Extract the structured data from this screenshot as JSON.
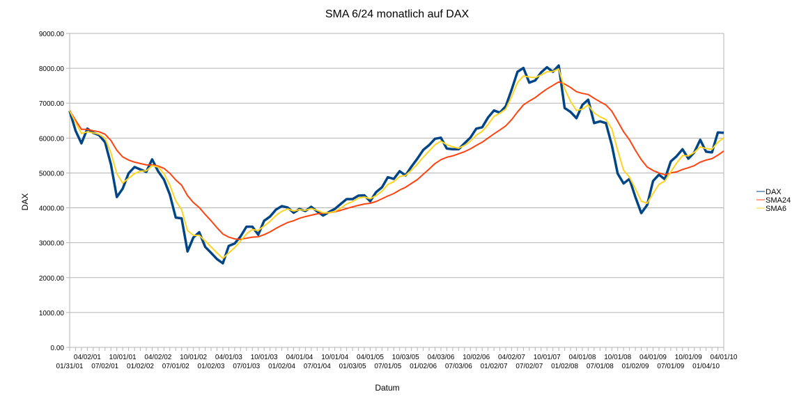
{
  "chart_data": {
    "type": "line",
    "title": "SMA 6/24 monatlich auf DAX",
    "xlabel": "Datum",
    "ylabel": "DAX",
    "ylim": [
      0,
      9000
    ],
    "y_ticks": [
      "0.00",
      "1000.00",
      "2000.00",
      "3000.00",
      "4000.00",
      "5000.00",
      "6000.00",
      "7000.00",
      "8000.00",
      "9000.00"
    ],
    "grid": true,
    "legend_position": "right",
    "x_tick_labels": [
      {
        "index": 0,
        "label": "01/31/01"
      },
      {
        "index": 3,
        "label": "04/02/01"
      },
      {
        "index": 6,
        "label": "07/02/01"
      },
      {
        "index": 9,
        "label": "10/01/01"
      },
      {
        "index": 12,
        "label": "01/02/02"
      },
      {
        "index": 15,
        "label": "04/02/02"
      },
      {
        "index": 18,
        "label": "07/01/02"
      },
      {
        "index": 21,
        "label": "10/01/02"
      },
      {
        "index": 24,
        "label": "01/02/03"
      },
      {
        "index": 27,
        "label": "04/01/03"
      },
      {
        "index": 30,
        "label": "07/01/03"
      },
      {
        "index": 33,
        "label": "10/01/03"
      },
      {
        "index": 36,
        "label": "01/02/04"
      },
      {
        "index": 39,
        "label": "04/01/04"
      },
      {
        "index": 42,
        "label": "07/01/04"
      },
      {
        "index": 45,
        "label": "10/01/04"
      },
      {
        "index": 48,
        "label": "01/03/05"
      },
      {
        "index": 51,
        "label": "04/01/05"
      },
      {
        "index": 54,
        "label": "07/01/05"
      },
      {
        "index": 57,
        "label": "10/03/05"
      },
      {
        "index": 60,
        "label": "01/02/06"
      },
      {
        "index": 63,
        "label": "04/03/06"
      },
      {
        "index": 66,
        "label": "07/03/06"
      },
      {
        "index": 69,
        "label": "10/02/06"
      },
      {
        "index": 72,
        "label": "01/02/07"
      },
      {
        "index": 75,
        "label": "04/02/07"
      },
      {
        "index": 78,
        "label": "07/02/07"
      },
      {
        "index": 81,
        "label": "10/01/07"
      },
      {
        "index": 84,
        "label": "01/02/08"
      },
      {
        "index": 87,
        "label": "04/01/08"
      },
      {
        "index": 90,
        "label": "07/01/08"
      },
      {
        "index": 93,
        "label": "10/01/08"
      },
      {
        "index": 96,
        "label": "01/02/09"
      },
      {
        "index": 99,
        "label": "04/01/09"
      },
      {
        "index": 102,
        "label": "07/01/09"
      },
      {
        "index": 105,
        "label": "10/01/09"
      },
      {
        "index": 108,
        "label": "01/04/10"
      },
      {
        "index": 111,
        "label": "04/01/10"
      }
    ],
    "n_points": 112,
    "series": [
      {
        "name": "DAX",
        "color": "#004586",
        "values": [
          6780,
          6210,
          5850,
          6270,
          6150,
          6080,
          5880,
          5250,
          4310,
          4550,
          4990,
          5170,
          5100,
          5030,
          5390,
          5050,
          4810,
          4380,
          3720,
          3700,
          2750,
          3150,
          3300,
          2880,
          2710,
          2530,
          2410,
          2910,
          2980,
          3180,
          3460,
          3460,
          3230,
          3630,
          3750,
          3950,
          4050,
          4010,
          3860,
          3970,
          3910,
          4030,
          3900,
          3780,
          3880,
          3970,
          4110,
          4250,
          4250,
          4350,
          4360,
          4190,
          4450,
          4590,
          4880,
          4830,
          5050,
          4930,
          5180,
          5410,
          5660,
          5800,
          5980,
          6010,
          5700,
          5680,
          5680,
          5850,
          6010,
          6270,
          6310,
          6590,
          6790,
          6730,
          6910,
          7390,
          7900,
          8010,
          7590,
          7650,
          7880,
          8030,
          7900,
          8080,
          6860,
          6750,
          6570,
          6950,
          7100,
          6430,
          6480,
          6430,
          5800,
          4980,
          4700,
          4830,
          4310,
          3850,
          4080,
          4770,
          4950,
          4820,
          5330,
          5480,
          5680,
          5410,
          5590,
          5950,
          5610,
          5590,
          6160,
          6150
        ]
      },
      {
        "name": "SMA24",
        "color": "#ff420e",
        "values": [
          6780,
          6510,
          6250,
          6250,
          6210,
          6180,
          6110,
          5930,
          5650,
          5460,
          5370,
          5310,
          5270,
          5230,
          5230,
          5200,
          5130,
          4990,
          4800,
          4650,
          4350,
          4150,
          4010,
          3810,
          3630,
          3430,
          3250,
          3160,
          3110,
          3100,
          3130,
          3160,
          3170,
          3230,
          3310,
          3410,
          3500,
          3580,
          3630,
          3700,
          3750,
          3790,
          3830,
          3850,
          3860,
          3890,
          3930,
          3980,
          4030,
          4070,
          4110,
          4130,
          4180,
          4260,
          4340,
          4410,
          4510,
          4590,
          4700,
          4810,
          4960,
          5110,
          5270,
          5380,
          5450,
          5490,
          5550,
          5610,
          5690,
          5790,
          5880,
          6000,
          6120,
          6230,
          6350,
          6530,
          6750,
          6950,
          7060,
          7160,
          7290,
          7410,
          7510,
          7610,
          7550,
          7450,
          7330,
          7280,
          7250,
          7140,
          7040,
          6950,
          6770,
          6480,
          6180,
          5950,
          5650,
          5380,
          5170,
          5070,
          5000,
          4950,
          5000,
          5030,
          5100,
          5150,
          5210,
          5310,
          5370,
          5410,
          5510,
          5630
        ]
      },
      {
        "name": "SMA6",
        "color": "#ffd320",
        "values": [
          6780,
          6450,
          6130,
          6180,
          6150,
          6110,
          5990,
          5580,
          4980,
          4710,
          4850,
          4980,
          5050,
          5060,
          5210,
          5170,
          4980,
          4650,
          4200,
          3950,
          3350,
          3210,
          3210,
          3050,
          2880,
          2710,
          2550,
          2710,
          2860,
          3050,
          3250,
          3380,
          3350,
          3480,
          3610,
          3780,
          3900,
          3970,
          3910,
          3950,
          3930,
          3980,
          3930,
          3860,
          3860,
          3900,
          3990,
          4110,
          4180,
          4280,
          4310,
          4260,
          4350,
          4480,
          4670,
          4750,
          4900,
          4930,
          5080,
          5250,
          5450,
          5630,
          5810,
          5910,
          5810,
          5750,
          5710,
          5790,
          5910,
          6080,
          6190,
          6390,
          6620,
          6710,
          6830,
          7190,
          7590,
          7780,
          7750,
          7730,
          7810,
          7900,
          7910,
          7980,
          7410,
          7050,
          6790,
          6830,
          6950,
          6720,
          6610,
          6530,
          6270,
          5650,
          5080,
          4880,
          4550,
          4190,
          4130,
          4410,
          4670,
          4770,
          5030,
          5280,
          5500,
          5490,
          5590,
          5750,
          5700,
          5680,
          5880,
          6010
        ]
      }
    ]
  }
}
